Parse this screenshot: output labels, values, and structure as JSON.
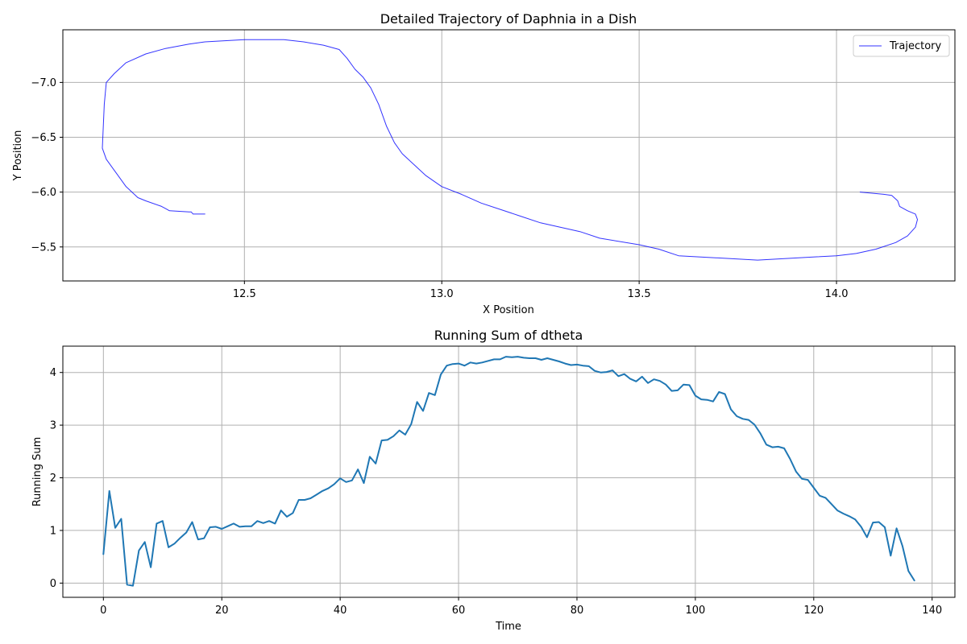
{
  "chart_data": [
    {
      "type": "line",
      "title": "Detailed Trajectory of Daphnia in a Dish",
      "xlabel": "X Position",
      "ylabel": "Y Position",
      "xlim": [
        12.04,
        14.3
      ],
      "ylim": [
        -5.19,
        -7.48
      ],
      "y_inverted": true,
      "xticks": [
        12.5,
        13.0,
        13.5,
        14.0
      ],
      "xtick_labels": [
        "12.5",
        "13.0",
        "13.5",
        "14.0"
      ],
      "yticks": [
        -7.0,
        -6.5,
        -6.0,
        -5.5
      ],
      "ytick_labels": [
        "−7.0",
        "−6.5",
        "−6.0",
        "−5.5"
      ],
      "grid": true,
      "legend": {
        "placement": "top-right",
        "entries": [
          "Trajectory"
        ]
      },
      "series": [
        {
          "name": "Trajectory",
          "color": "#0000ff",
          "x": [
            12.4,
            12.37,
            12.365,
            12.36,
            12.31,
            12.3,
            12.29,
            12.25,
            12.23,
            12.2,
            12.18,
            12.17,
            12.15,
            12.14,
            12.145,
            12.15,
            12.17,
            12.2,
            12.25,
            12.3,
            12.36,
            12.4,
            12.45,
            12.5,
            12.6,
            12.65,
            12.7,
            12.74,
            12.76,
            12.78,
            12.8,
            12.82,
            12.84,
            12.86,
            12.88,
            12.9,
            12.93,
            12.96,
            13.0,
            13.05,
            13.1,
            13.2,
            13.25,
            13.3,
            13.35,
            13.4,
            13.5,
            13.55,
            13.6,
            13.7,
            13.8,
            13.9,
            13.95,
            14.0,
            14.05,
            14.1,
            14.15,
            14.18,
            14.2,
            14.205,
            14.2,
            14.18,
            14.16,
            14.155,
            14.14,
            14.12,
            14.06
          ],
          "y": [
            -5.8,
            -5.8,
            -5.82,
            -5.82,
            -5.83,
            -5.85,
            -5.87,
            -5.92,
            -5.95,
            -6.05,
            -6.15,
            -6.2,
            -6.3,
            -6.4,
            -6.8,
            -7.0,
            -7.08,
            -7.18,
            -7.26,
            -7.31,
            -7.35,
            -7.37,
            -7.38,
            -7.39,
            -7.39,
            -7.37,
            -7.34,
            -7.3,
            -7.22,
            -7.12,
            -7.05,
            -6.95,
            -6.8,
            -6.6,
            -6.45,
            -6.35,
            -6.25,
            -6.15,
            -6.05,
            -5.98,
            -5.9,
            -5.78,
            -5.72,
            -5.68,
            -5.64,
            -5.58,
            -5.52,
            -5.48,
            -5.42,
            -5.4,
            -5.38,
            -5.4,
            -5.41,
            -5.42,
            -5.44,
            -5.48,
            -5.54,
            -5.6,
            -5.68,
            -5.75,
            -5.8,
            -5.83,
            -5.87,
            -5.92,
            -5.97,
            -5.98,
            -6.0
          ]
        }
      ]
    },
    {
      "type": "line",
      "title": "Running Sum of dtheta",
      "xlabel": "Time",
      "ylabel": "Running Sum",
      "xlim": [
        -6.85,
        143.85
      ],
      "ylim": [
        -0.27,
        4.5
      ],
      "xticks": [
        0,
        20,
        40,
        60,
        80,
        100,
        120,
        140
      ],
      "xtick_labels": [
        "0",
        "20",
        "40",
        "60",
        "80",
        "100",
        "120",
        "140"
      ],
      "yticks": [
        0,
        1,
        2,
        3,
        4
      ],
      "ytick_labels": [
        "0",
        "1",
        "2",
        "3",
        "4"
      ],
      "grid": true,
      "series": [
        {
          "color": "#1f77b4",
          "x": [
            0,
            1,
            2,
            3,
            4,
            5,
            6,
            7,
            8,
            9,
            10,
            11,
            12,
            13,
            14,
            15,
            16,
            17,
            18,
            19,
            20,
            21,
            22,
            23,
            24,
            25,
            26,
            27,
            28,
            29,
            30,
            31,
            32,
            33,
            34,
            35,
            36,
            37,
            38,
            39,
            40,
            41,
            42,
            43,
            44,
            45,
            46,
            47,
            48,
            49,
            50,
            51,
            52,
            53,
            54,
            55,
            56,
            57,
            58,
            59,
            60,
            61,
            62,
            63,
            64,
            65,
            66,
            67,
            68,
            69,
            70,
            71,
            72,
            73,
            74,
            75,
            76,
            77,
            78,
            79,
            80,
            81,
            82,
            83,
            84,
            85,
            86,
            87,
            88,
            89,
            90,
            91,
            92,
            93,
            94,
            95,
            96,
            97,
            98,
            99,
            100,
            101,
            102,
            103,
            104,
            105,
            106,
            107,
            108,
            109,
            110,
            111,
            112,
            113,
            114,
            115,
            116,
            117,
            118,
            119,
            120,
            121,
            122,
            123,
            124,
            125,
            126,
            127,
            128,
            129,
            130,
            131,
            132,
            133,
            134,
            135,
            136,
            137
          ],
          "y": [
            0.55,
            1.75,
            1.05,
            1.22,
            -0.03,
            -0.05,
            0.62,
            0.78,
            0.3,
            1.13,
            1.18,
            0.68,
            0.75,
            0.86,
            0.96,
            1.16,
            0.83,
            0.85,
            1.06,
            1.07,
            1.03,
            1.08,
            1.13,
            1.07,
            1.08,
            1.08,
            1.18,
            1.14,
            1.18,
            1.13,
            1.38,
            1.26,
            1.33,
            1.58,
            1.58,
            1.61,
            1.68,
            1.75,
            1.8,
            1.88,
            1.99,
            1.92,
            1.95,
            2.16,
            1.9,
            2.4,
            2.27,
            2.71,
            2.72,
            2.79,
            2.9,
            2.82,
            3.02,
            3.44,
            3.27,
            3.61,
            3.57,
            3.96,
            4.13,
            4.16,
            4.17,
            4.13,
            4.19,
            4.17,
            4.19,
            4.22,
            4.25,
            4.25,
            4.3,
            4.29,
            4.3,
            4.28,
            4.27,
            4.27,
            4.24,
            4.27,
            4.24,
            4.21,
            4.17,
            4.14,
            4.15,
            4.13,
            4.12,
            4.03,
            4.0,
            4.01,
            4.04,
            3.93,
            3.97,
            3.88,
            3.83,
            3.92,
            3.8,
            3.87,
            3.84,
            3.77,
            3.65,
            3.66,
            3.77,
            3.76,
            3.56,
            3.49,
            3.48,
            3.45,
            3.63,
            3.59,
            3.3,
            3.17,
            3.12,
            3.1,
            3.01,
            2.84,
            2.63,
            2.58,
            2.59,
            2.56,
            2.36,
            2.12,
            1.98,
            1.96,
            1.81,
            1.66,
            1.62,
            1.5,
            1.38,
            1.32,
            1.27,
            1.21,
            1.07,
            0.87,
            1.15,
            1.16,
            1.06,
            0.52,
            1.04,
            0.7,
            0.23,
            0.05
          ]
        }
      ]
    }
  ]
}
